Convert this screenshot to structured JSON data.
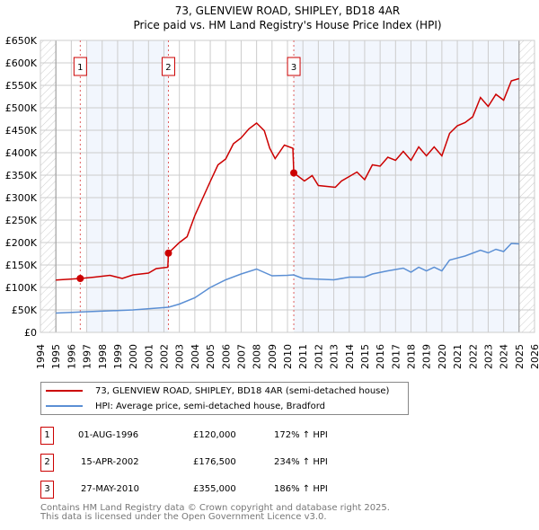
{
  "chart_data": {
    "type": "line",
    "title": "73, GLENVIEW ROAD, SHIPLEY, BD18 4AR",
    "subtitle": "Price paid vs. HM Land Registry's House Price Index (HPI)",
    "xlim": [
      1994,
      2026
    ],
    "ylim": [
      0,
      650000
    ],
    "x_ticks": [
      "1994",
      "1995",
      "1996",
      "1997",
      "1998",
      "1999",
      "2000",
      "2001",
      "2002",
      "2003",
      "2004",
      "2005",
      "2006",
      "2007",
      "2008",
      "2009",
      "2010",
      "2011",
      "2012",
      "2013",
      "2014",
      "2015",
      "2016",
      "2017",
      "2018",
      "2019",
      "2020",
      "2021",
      "2022",
      "2023",
      "2024",
      "2025",
      "2026"
    ],
    "y_ticks": [
      "£0",
      "£50K",
      "£100K",
      "£150K",
      "£200K",
      "£250K",
      "£300K",
      "£350K",
      "£400K",
      "£450K",
      "£500K",
      "£550K",
      "£600K",
      "£650K"
    ],
    "grid": true,
    "series": [
      {
        "name": "73, GLENVIEW ROAD, SHIPLEY, BD18 4AR (semi-detached house)",
        "color": "#cc0000",
        "x": [
          1995,
          1996.6,
          1997.5,
          1998.5,
          1999.3,
          2000,
          2001,
          2001.5,
          2002.25,
          2002.29,
          2003,
          2003.5,
          2004,
          2005,
          2005.5,
          2006,
          2006.5,
          2007,
          2007.5,
          2008,
          2008.5,
          2008.85,
          2009.2,
          2009.8,
          2010.35,
          2010.41,
          2011.1,
          2011.6,
          2012,
          2013.1,
          2013.5,
          2014,
          2014.5,
          2015,
          2015.5,
          2016,
          2016.5,
          2017,
          2017.5,
          2018,
          2018.5,
          2019,
          2019.5,
          2020,
          2020.5,
          2021,
          2021.5,
          2022,
          2022.5,
          2023,
          2023.5,
          2024,
          2024.5,
          2025
        ],
        "values": [
          116500,
          120000,
          123000,
          127000,
          120000,
          128000,
          132000,
          142000,
          145000,
          176500,
          200000,
          213000,
          260000,
          336000,
          373000,
          386000,
          420000,
          433000,
          453000,
          466000,
          449000,
          410000,
          387000,
          417000,
          410000,
          355000,
          337000,
          349000,
          327000,
          323000,
          337000,
          347000,
          357000,
          340000,
          373000,
          370000,
          390000,
          383000,
          403000,
          383000,
          413000,
          393000,
          413000,
          393000,
          443000,
          460000,
          467000,
          480000,
          523000,
          503000,
          530000,
          517000,
          560000,
          565000
        ]
      },
      {
        "name": "HPI: Average price, semi-detached house, Bradford",
        "color": "#5b8fd4",
        "x": [
          1995,
          1997,
          2000,
          2002.3,
          2003,
          2004,
          2005,
          2006,
          2007,
          2008,
          2009,
          2010,
          2010.4,
          2011,
          2013,
          2014,
          2015,
          2015.5,
          2016.5,
          2017.5,
          2018,
          2018.5,
          2019,
          2019.5,
          2020,
          2020.5,
          2021.5,
          2022.5,
          2023,
          2023.5,
          2024,
          2024.5,
          2025
        ],
        "values": [
          43000,
          46000,
          50000,
          56000,
          63000,
          77000,
          100000,
          117000,
          130000,
          141000,
          126000,
          127000,
          128000,
          120000,
          117000,
          123000,
          123000,
          130000,
          137000,
          143000,
          134000,
          145000,
          137000,
          145000,
          137000,
          161000,
          170000,
          183000,
          177000,
          185000,
          180000,
          198000,
          197000
        ]
      }
    ],
    "sales": [
      {
        "label": "1",
        "date": "01-AUG-1996",
        "x": 1996.58,
        "price": "£120,000",
        "value": 120000,
        "hpi": "172% ↑ HPI"
      },
      {
        "label": "2",
        "date": "15-APR-2002",
        "x": 2002.29,
        "price": "£176,500",
        "value": 176500,
        "hpi": "234% ↑ HPI"
      },
      {
        "label": "3",
        "date": "27-MAY-2010",
        "x": 2010.41,
        "price": "£355,000",
        "value": 355000,
        "hpi": "186% ↑ HPI"
      }
    ],
    "shaded_ranges": [
      [
        1997,
        2002.29
      ],
      [
        2010.41,
        2025
      ]
    ],
    "hatched_ranges": [
      [
        1994,
        1995
      ],
      [
        2025,
        2026
      ]
    ],
    "legend_placement": "below"
  },
  "footer": {
    "line1": "Contains HM Land Registry data © Crown copyright and database right 2025.",
    "line2": "This data is licensed under the Open Government Licence v3.0."
  }
}
